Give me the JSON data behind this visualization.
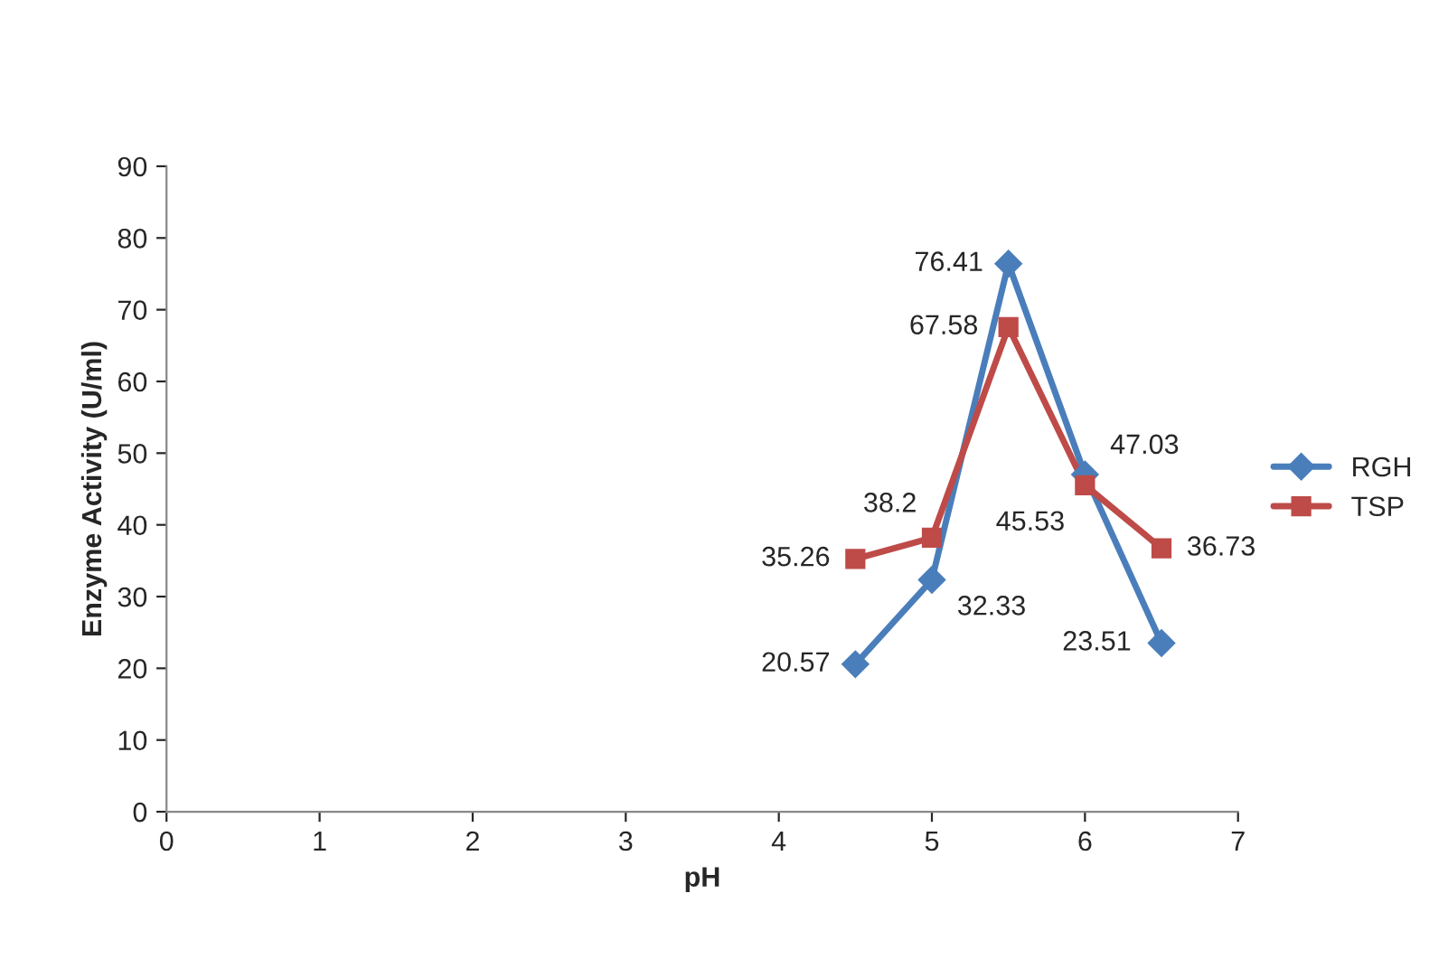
{
  "chart_data": {
    "type": "line",
    "xlabel": "pH",
    "ylabel": "Enzyme Activity (U/ml)",
    "x": [
      4.5,
      5,
      5.5,
      6,
      6.5
    ],
    "series": [
      {
        "name": "RGH",
        "color": "#4a7ebb",
        "marker": "diamond",
        "values": [
          20.57,
          32.33,
          76.41,
          47.03,
          23.51
        ]
      },
      {
        "name": "TSP",
        "color": "#be4b48",
        "marker": "square",
        "values": [
          35.26,
          38.2,
          67.58,
          45.53,
          36.73
        ]
      }
    ],
    "xlim": [
      0,
      7
    ],
    "xticks": [
      0,
      1,
      2,
      3,
      4,
      5,
      6,
      7
    ],
    "ylim": [
      0,
      90
    ],
    "yticks": [
      0,
      10,
      20,
      30,
      40,
      50,
      60,
      70,
      80,
      90
    ],
    "grid": false,
    "legend": "right",
    "data_labels": true,
    "line_style": "solid"
  }
}
